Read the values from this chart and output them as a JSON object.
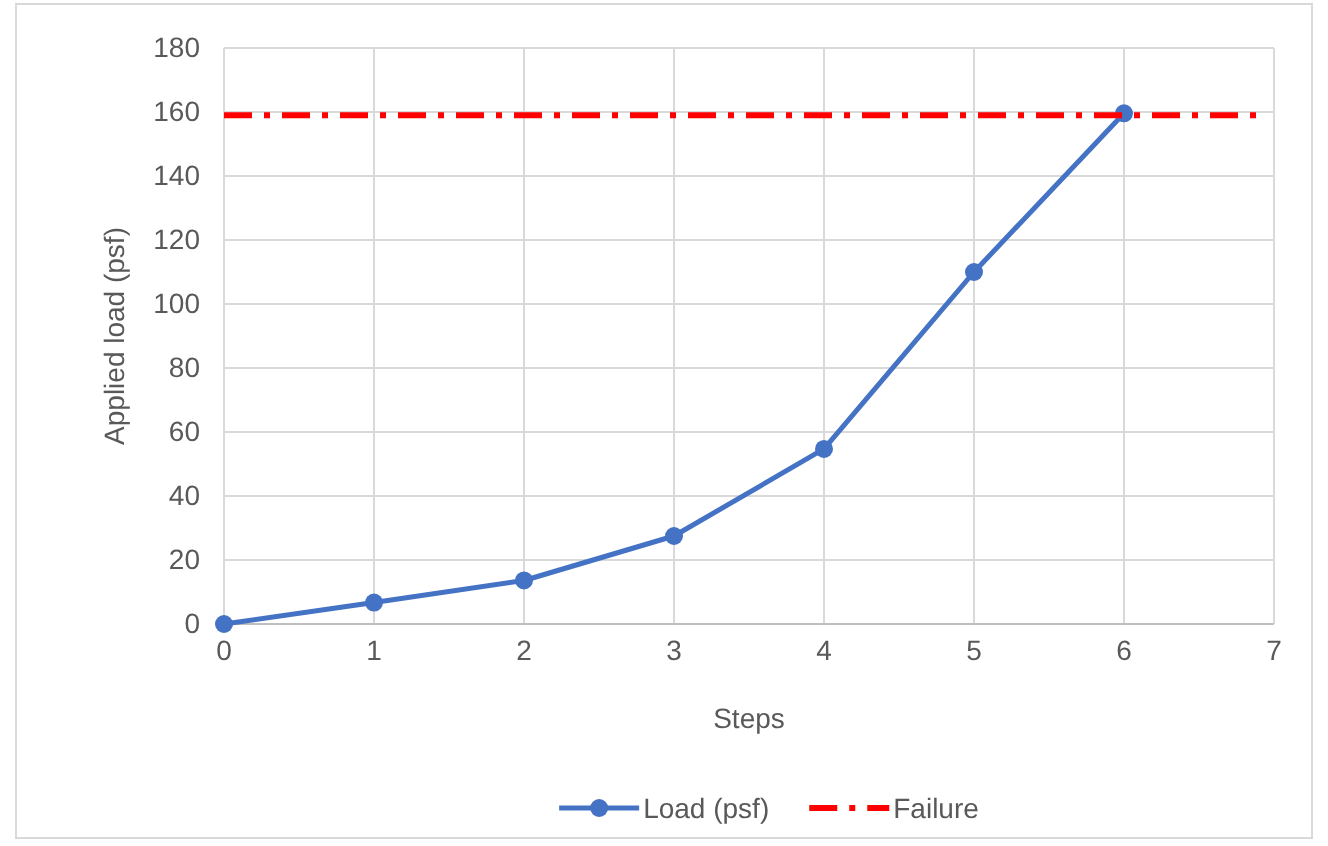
{
  "chart_data": {
    "type": "line",
    "xlabel": "Steps",
    "ylabel": "Applied load (psf)",
    "xlim": [
      0,
      7
    ],
    "xticks": [
      0,
      1,
      2,
      3,
      4,
      5,
      6,
      7
    ],
    "ylim": [
      0,
      180
    ],
    "yticks": [
      0,
      20,
      40,
      60,
      80,
      100,
      120,
      140,
      160,
      180
    ],
    "grid": true,
    "legend": "bottom",
    "series": [
      {
        "name": "Load (psf)",
        "color": "#4472c4",
        "x": [
          0,
          1,
          2,
          3,
          4,
          5,
          6
        ],
        "values": [
          0,
          6.7,
          13.6,
          27.5,
          54.7,
          110,
          159.6
        ],
        "marker": "circle",
        "line_style": "solid"
      },
      {
        "name": "Failure",
        "color": "#ff0000",
        "x": [
          0,
          6.9
        ],
        "values": [
          159,
          159
        ],
        "marker": "none",
        "line_style": "dashed"
      }
    ]
  }
}
